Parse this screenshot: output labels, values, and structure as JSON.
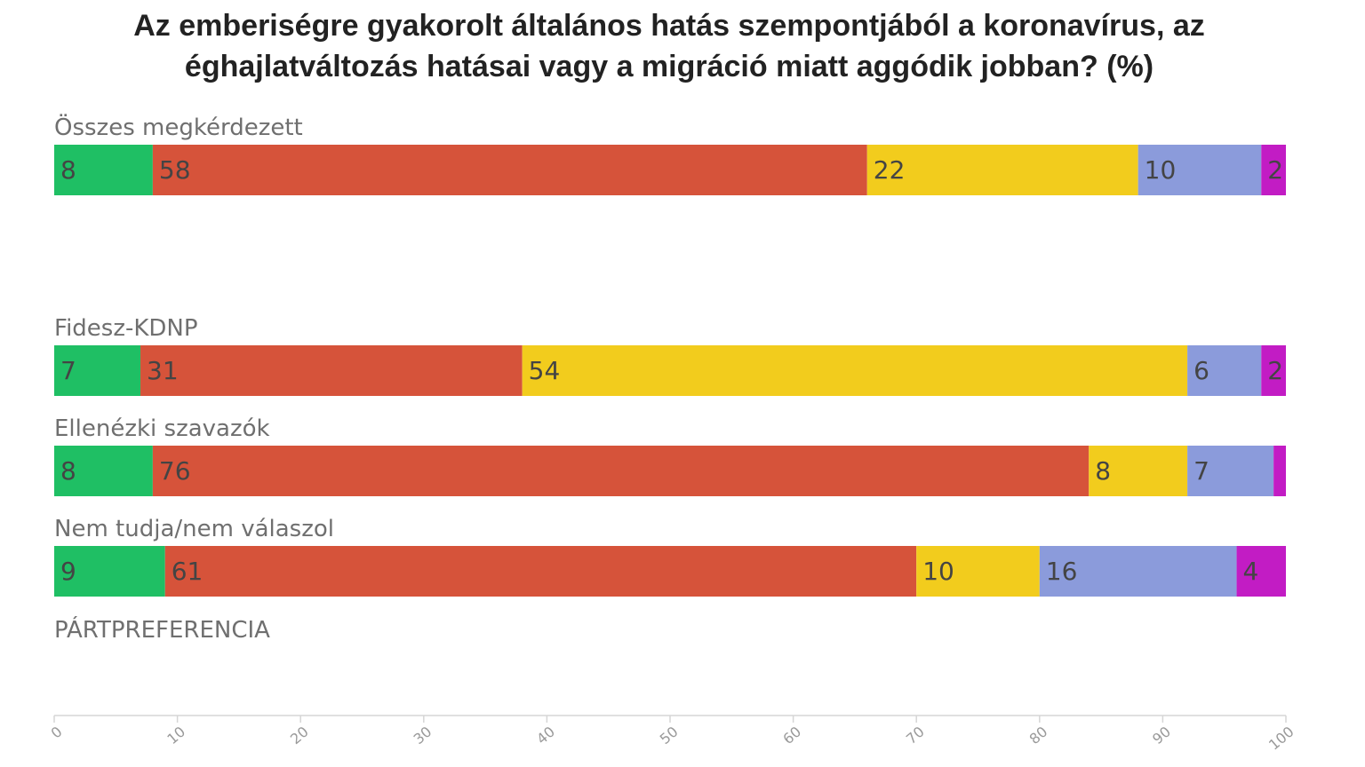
{
  "chart_data": {
    "type": "bar",
    "orientation": "horizontal",
    "stacked": true,
    "title_lines": [
      "Az emberiségre gyakorolt általános hatás szempontjából a koronavírus, az",
      "éghajlatváltozás hatásai vagy a migráció miatt aggódik jobban? (%)"
    ],
    "categories": [
      "Összes megkérdezett",
      "Fidesz-KDNP",
      "Ellenézki szavazók",
      "Nem tudja/nem válaszol"
    ],
    "section_label": "PÁRTPREFERENCIA",
    "series": [
      {
        "color": "#1fbf64",
        "values": [
          8,
          7,
          8,
          9
        ]
      },
      {
        "color": "#d6533a",
        "values": [
          58,
          31,
          76,
          61
        ]
      },
      {
        "color": "#f2cc1d",
        "values": [
          22,
          54,
          8,
          10
        ]
      },
      {
        "color": "#8b9bdb",
        "values": [
          10,
          6,
          7,
          16
        ]
      },
      {
        "color": "#c21cc4",
        "values": [
          2,
          2,
          1,
          4
        ]
      }
    ],
    "data_labels": [
      [
        "8",
        "58",
        "22",
        "10",
        "2"
      ],
      [
        "7",
        "31",
        "54",
        "6",
        "2"
      ],
      [
        "8",
        "76",
        "8",
        "7",
        ""
      ],
      [
        "9",
        "61",
        "10",
        "16",
        "4"
      ]
    ],
    "xlim": [
      0,
      100
    ],
    "x_ticks": [
      0,
      10,
      20,
      30,
      40,
      50,
      60,
      70,
      80,
      90,
      100
    ],
    "grid": false,
    "legend": "none"
  }
}
